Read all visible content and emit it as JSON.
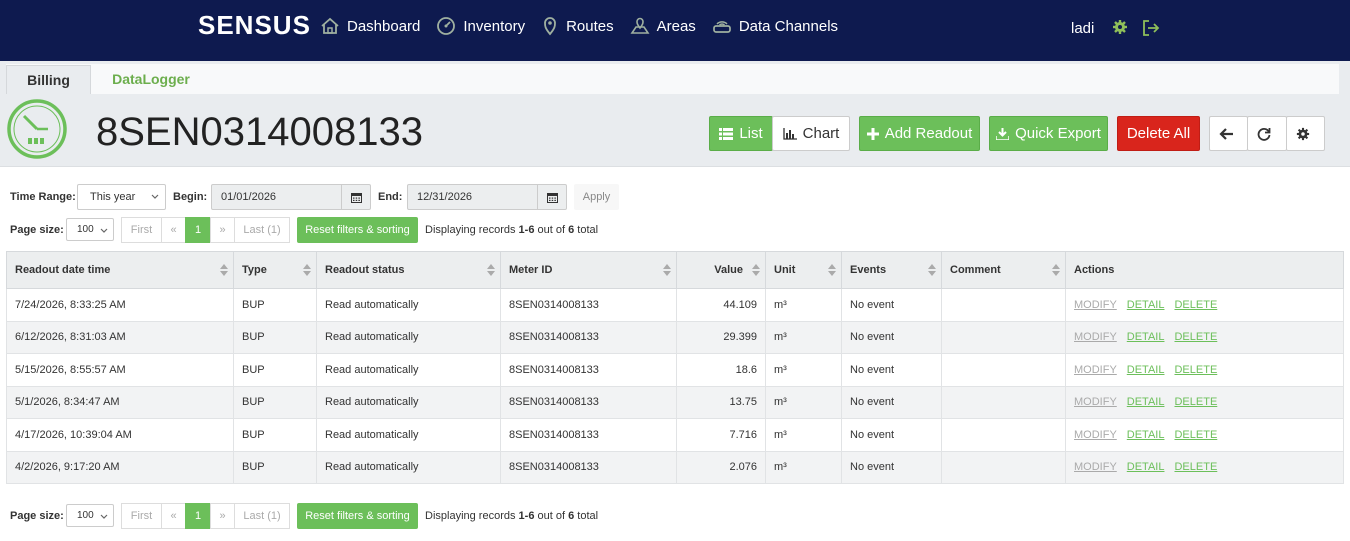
{
  "header": {
    "logo": "SENSUS",
    "nav": [
      {
        "label": "Dashboard",
        "icon": "home-icon"
      },
      {
        "label": "Inventory",
        "icon": "gauge-icon"
      },
      {
        "label": "Routes",
        "icon": "map-pin-icon"
      },
      {
        "label": "Areas",
        "icon": "map-area-icon"
      },
      {
        "label": "Data Channels",
        "icon": "router-icon"
      }
    ],
    "user": "ladi"
  },
  "tabs": [
    {
      "label": "Billing",
      "active": true
    },
    {
      "label": "DataLogger",
      "active": false
    }
  ],
  "page": {
    "meter_title": "8SEN0314008133",
    "buttons": {
      "list": "List",
      "chart": "Chart",
      "add_readout": "Add Readout",
      "quick_export": "Quick Export",
      "delete_all": "Delete All"
    }
  },
  "filters": {
    "time_range_label": "Time Range:",
    "time_range_value": "This year",
    "begin_label": "Begin:",
    "begin_value": "01/01/2026",
    "end_label": "End:",
    "end_value": "12/31/2026",
    "apply_label": "Apply"
  },
  "pager": {
    "page_size_label": "Page size:",
    "page_size": "100",
    "first": "First",
    "prev": "«",
    "current": "1",
    "next": "»",
    "last": "Last (1)",
    "reset": "Reset filters & sorting",
    "displaying_prefix": "Displaying records ",
    "range": "1-6",
    "out_of": " out of ",
    "total_count": "6",
    "total_suffix": " total"
  },
  "table": {
    "columns": [
      "Readout date time",
      "Type",
      "Readout status",
      "Meter ID",
      "Value",
      "Unit",
      "Events",
      "Comment",
      "Actions"
    ],
    "actions": {
      "modify": "MODIFY",
      "detail": "DETAIL",
      "delete": "DELETE"
    },
    "rows": [
      {
        "datetime": "7/24/2026, 8:33:25 AM",
        "type": "BUP",
        "status": "Read automatically",
        "meter_id": "8SEN0314008133",
        "value": "44.109",
        "unit": "m³",
        "events": "No event",
        "comment": ""
      },
      {
        "datetime": "6/12/2026, 8:31:03 AM",
        "type": "BUP",
        "status": "Read automatically",
        "meter_id": "8SEN0314008133",
        "value": "29.399",
        "unit": "m³",
        "events": "No event",
        "comment": ""
      },
      {
        "datetime": "5/15/2026, 8:55:57 AM",
        "type": "BUP",
        "status": "Read automatically",
        "meter_id": "8SEN0314008133",
        "value": "18.6",
        "unit": "m³",
        "events": "No event",
        "comment": ""
      },
      {
        "datetime": "5/1/2026, 8:34:47 AM",
        "type": "BUP",
        "status": "Read automatically",
        "meter_id": "8SEN0314008133",
        "value": "13.75",
        "unit": "m³",
        "events": "No event",
        "comment": ""
      },
      {
        "datetime": "4/17/2026, 10:39:04 AM",
        "type": "BUP",
        "status": "Read automatically",
        "meter_id": "8SEN0314008133",
        "value": "7.716",
        "unit": "m³",
        "events": "No event",
        "comment": ""
      },
      {
        "datetime": "4/2/2026, 9:17:20 AM",
        "type": "BUP",
        "status": "Read automatically",
        "meter_id": "8SEN0314008133",
        "value": "2.076",
        "unit": "m³",
        "events": "No event",
        "comment": ""
      }
    ]
  },
  "colors": {
    "topbar": "#0e1a4f",
    "accent_green": "#6cbf5a",
    "danger_red": "#d9251c"
  }
}
